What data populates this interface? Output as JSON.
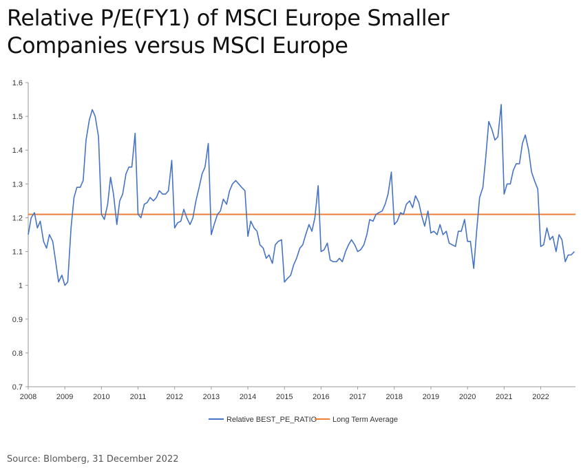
{
  "title": {
    "line1": "Relative P/E(FY1) of MSCI Europe Smaller",
    "line2": "Companies versus MSCI Europe"
  },
  "source": "Source: Blomberg, 31 December 2022",
  "chart_data": {
    "type": "line",
    "ylim": [
      0.7,
      1.6
    ],
    "y_ticks": [
      "0.7",
      "0.8",
      "0.9",
      "1",
      "1.1",
      "1.2",
      "1.3",
      "1.4",
      "1.5",
      "1.6"
    ],
    "xlim": [
      2008,
      2022.95
    ],
    "x_ticks": [
      "2008",
      "2009",
      "2010",
      "2011",
      "2012",
      "2013",
      "2014",
      "2015",
      "2016",
      "2017",
      "2018",
      "2019",
      "2020",
      "2021",
      "2022"
    ],
    "grid": false,
    "legend_position": "bottom",
    "series": [
      {
        "name": "Relative BEST_PE_RATIO",
        "color": "#4472C4",
        "x": [
          2008.0,
          2008.08,
          2008.17,
          2008.25,
          2008.33,
          2008.42,
          2008.5,
          2008.58,
          2008.67,
          2008.75,
          2008.83,
          2008.92,
          2009.0,
          2009.08,
          2009.17,
          2009.25,
          2009.33,
          2009.42,
          2009.5,
          2009.58,
          2009.67,
          2009.75,
          2009.83,
          2009.92,
          2010.0,
          2010.08,
          2010.17,
          2010.25,
          2010.33,
          2010.42,
          2010.5,
          2010.58,
          2010.67,
          2010.75,
          2010.83,
          2010.92,
          2011.0,
          2011.08,
          2011.17,
          2011.25,
          2011.33,
          2011.42,
          2011.5,
          2011.58,
          2011.67,
          2011.75,
          2011.83,
          2011.92,
          2012.0,
          2012.08,
          2012.17,
          2012.25,
          2012.33,
          2012.42,
          2012.5,
          2012.58,
          2012.67,
          2012.75,
          2012.83,
          2012.92,
          2013.0,
          2013.08,
          2013.17,
          2013.25,
          2013.33,
          2013.42,
          2013.5,
          2013.58,
          2013.67,
          2013.75,
          2013.83,
          2013.92,
          2014.0,
          2014.08,
          2014.17,
          2014.25,
          2014.33,
          2014.42,
          2014.5,
          2014.58,
          2014.67,
          2014.75,
          2014.83,
          2014.92,
          2015.0,
          2015.08,
          2015.17,
          2015.25,
          2015.33,
          2015.42,
          2015.5,
          2015.58,
          2015.67,
          2015.75,
          2015.83,
          2015.92,
          2016.0,
          2016.08,
          2016.17,
          2016.25,
          2016.33,
          2016.42,
          2016.5,
          2016.58,
          2016.67,
          2016.75,
          2016.83,
          2016.92,
          2017.0,
          2017.08,
          2017.17,
          2017.25,
          2017.33,
          2017.42,
          2017.5,
          2017.58,
          2017.67,
          2017.75,
          2017.83,
          2017.92,
          2018.0,
          2018.08,
          2018.17,
          2018.25,
          2018.33,
          2018.42,
          2018.5,
          2018.58,
          2018.67,
          2018.75,
          2018.83,
          2018.92,
          2019.0,
          2019.08,
          2019.17,
          2019.25,
          2019.33,
          2019.42,
          2019.5,
          2019.58,
          2019.67,
          2019.75,
          2019.83,
          2019.92,
          2020.0,
          2020.08,
          2020.17,
          2020.25,
          2020.33,
          2020.42,
          2020.5,
          2020.58,
          2020.67,
          2020.75,
          2020.83,
          2020.92,
          2021.0,
          2021.08,
          2021.17,
          2021.25,
          2021.33,
          2021.42,
          2021.5,
          2021.58,
          2021.67,
          2021.75,
          2021.83,
          2021.92,
          2022.0,
          2022.08,
          2022.17,
          2022.25,
          2022.33,
          2022.42,
          2022.5,
          2022.58,
          2022.67,
          2022.75,
          2022.83,
          2022.92
        ],
        "values": [
          1.15,
          1.2,
          1.215,
          1.17,
          1.19,
          1.13,
          1.11,
          1.15,
          1.13,
          1.07,
          1.01,
          1.03,
          1.0,
          1.01,
          1.17,
          1.26,
          1.29,
          1.29,
          1.31,
          1.43,
          1.49,
          1.52,
          1.5,
          1.44,
          1.21,
          1.195,
          1.24,
          1.32,
          1.27,
          1.18,
          1.25,
          1.27,
          1.33,
          1.35,
          1.35,
          1.45,
          1.21,
          1.2,
          1.24,
          1.245,
          1.26,
          1.25,
          1.26,
          1.28,
          1.27,
          1.27,
          1.28,
          1.37,
          1.17,
          1.185,
          1.19,
          1.225,
          1.2,
          1.18,
          1.2,
          1.25,
          1.29,
          1.33,
          1.35,
          1.42,
          1.15,
          1.18,
          1.21,
          1.22,
          1.255,
          1.24,
          1.28,
          1.3,
          1.31,
          1.3,
          1.29,
          1.28,
          1.145,
          1.19,
          1.17,
          1.16,
          1.12,
          1.11,
          1.08,
          1.09,
          1.065,
          1.12,
          1.13,
          1.135,
          1.01,
          1.02,
          1.03,
          1.06,
          1.08,
          1.11,
          1.12,
          1.15,
          1.18,
          1.16,
          1.2,
          1.295,
          1.1,
          1.105,
          1.125,
          1.075,
          1.07,
          1.07,
          1.08,
          1.07,
          1.1,
          1.12,
          1.135,
          1.12,
          1.1,
          1.105,
          1.12,
          1.15,
          1.195,
          1.19,
          1.21,
          1.215,
          1.22,
          1.24,
          1.27,
          1.335,
          1.18,
          1.19,
          1.215,
          1.21,
          1.24,
          1.25,
          1.23,
          1.265,
          1.245,
          1.205,
          1.175,
          1.22,
          1.155,
          1.16,
          1.15,
          1.18,
          1.15,
          1.16,
          1.125,
          1.12,
          1.115,
          1.16,
          1.16,
          1.195,
          1.13,
          1.13,
          1.05,
          1.16,
          1.26,
          1.29,
          1.38,
          1.485,
          1.46,
          1.43,
          1.44,
          1.535,
          1.27,
          1.3,
          1.3,
          1.34,
          1.36,
          1.36,
          1.42,
          1.445,
          1.4,
          1.335,
          1.31,
          1.285,
          1.115,
          1.12,
          1.17,
          1.135,
          1.145,
          1.1,
          1.15,
          1.135,
          1.07,
          1.09,
          1.09,
          1.1
        ]
      },
      {
        "name": "Long Term Average",
        "color": "#ED7D31",
        "value": 1.21
      }
    ]
  }
}
